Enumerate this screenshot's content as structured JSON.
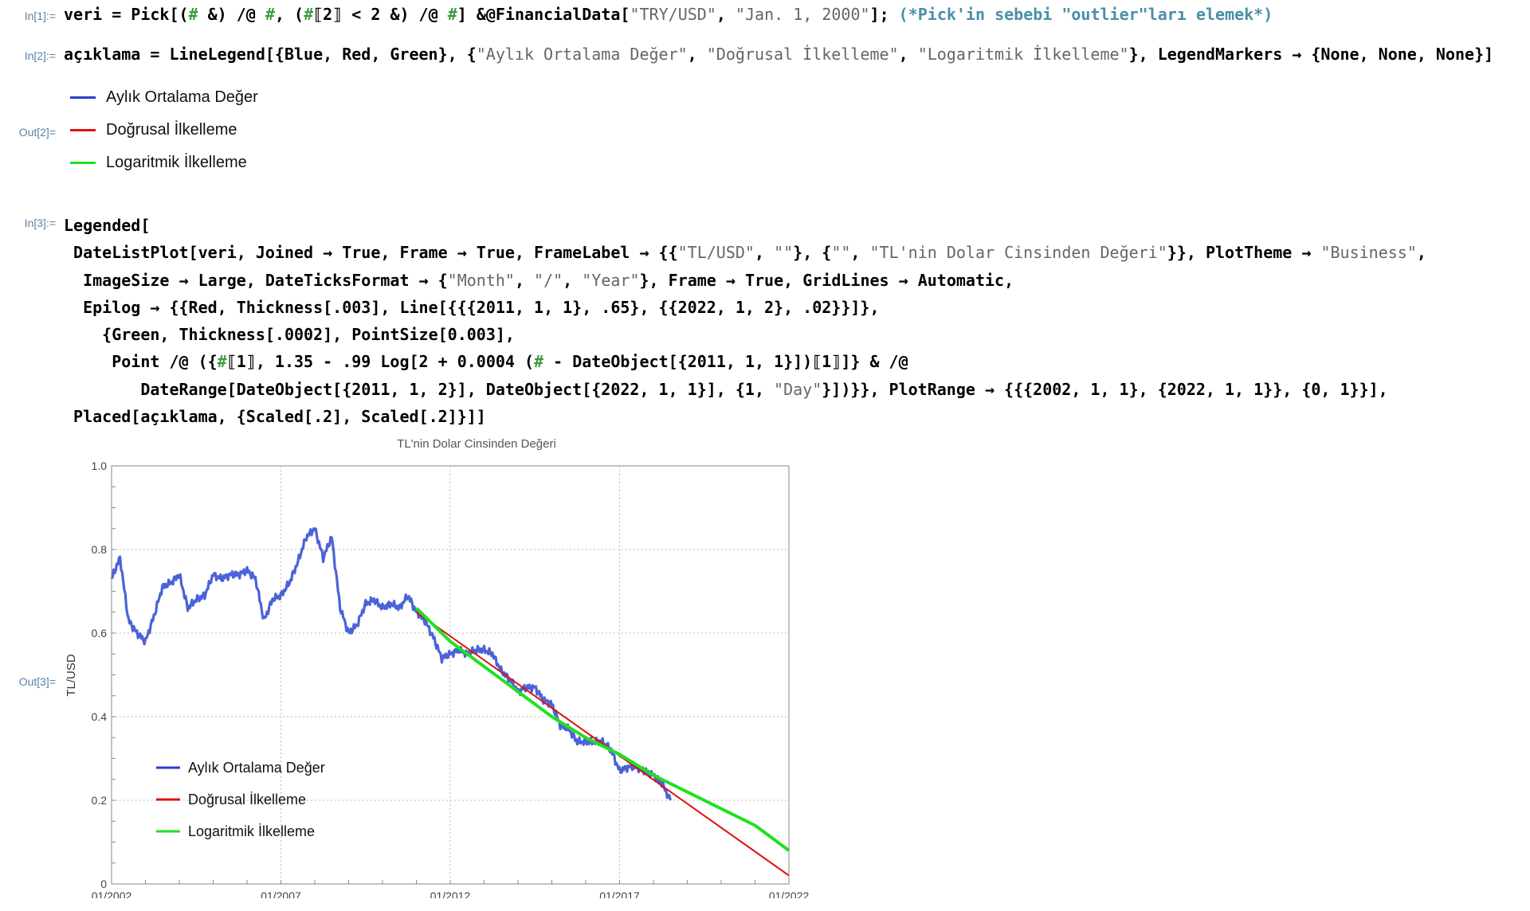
{
  "cells": {
    "in1_label": "In[1]:=",
    "in2_label": "In[2]:=",
    "out2_label": "Out[2]=",
    "in3_label": "In[3]:=",
    "out3_label": "Out[3]="
  },
  "code": {
    "in1": {
      "a": "veri = Pick[(",
      "s1": "#",
      "b": " &) /@ ",
      "s2": "#",
      "c": ", (",
      "s3": "#",
      "d": "⟦2⟧ < 2 &) /@ ",
      "s4": "#",
      "e": "] &@FinancialData[",
      "str1": "\"TRY/USD\"",
      "f": ", ",
      "str2": "\"Jan. 1, 2000\"",
      "g": "]; ",
      "comment": "(*Pick'in sebebi \"outlier\"ları elemek*)"
    },
    "in2": {
      "a": "açıklama = LineLegend[{Blue, Red, Green}, {",
      "str1": "\"Aylık Ortalama Değer\"",
      "b": ", ",
      "str2": "\"Doğrusal İlkelleme\"",
      "c": ", ",
      "str3": "\"Logaritmik İlkelleme\"",
      "d": "}, LegendMarkers → {None, None, None}]"
    },
    "in3": {
      "l1": "Legended[",
      "l2a": "DateListPlot[veri, Joined → True, Frame → True, FrameLabel → {{",
      "l2s1": "\"TL/USD\"",
      "l2b": ", ",
      "l2s2": "\"\"",
      "l2c": "}, {",
      "l2s3": "\"\"",
      "l2d": ", ",
      "l2s4": "\"TL'nin Dolar Cinsinden Değeri\"",
      "l2e": "}}, PlotTheme → ",
      "l2s5": "\"Business\"",
      "l2f": ",",
      "l3a": "ImageSize → Large, DateTicksFormat → {",
      "l3s1": "\"Month\"",
      "l3b": ", ",
      "l3s2": "\"/\"",
      "l3c": ", ",
      "l3s3": "\"Year\"",
      "l3d": "}, Frame → True, GridLines → Automatic,",
      "l4": "Epilog → {{Red, Thickness[.003], Line[{{{2011, 1, 1}, .65}, {{2022, 1, 2}, .02}}]},",
      "l5": "{Green, Thickness[.0002], PointSize[0.003],",
      "l6a": "Point /@ ({",
      "l6s1": "#",
      "l6b": "⟦1⟧, 1.35 - .99 Log[2 + 0.0004 (",
      "l6s2": "#",
      "l6c": " - DateObject[{2011, 1, 1}])⟦1⟧]} & /@",
      "l7a": "DateRange[DateObject[{2011, 1, 2}], DateObject[{2022, 1, 1}], {1, ",
      "l7s1": "\"Day\"",
      "l7b": "}])}}, PlotRange → {{{2002, 1, 1}, {2022, 1, 1}}, {0, 1}}],",
      "l8": "Placed[açıklama, {Scaled[.2], Scaled[.2]}]]"
    }
  },
  "legend": {
    "items": [
      {
        "label": "Aylık Ortalama Değer",
        "color": "#2b3fd0"
      },
      {
        "label": "Doğrusal İlkelleme",
        "color": "#e01010"
      },
      {
        "label": "Logaritmik İlkelleme",
        "color": "#22e022"
      }
    ]
  },
  "chart_data": {
    "type": "line",
    "title": "TL'nin Dolar Cinsinden Değeri",
    "xlabel": "",
    "ylabel": "TL/USD",
    "xlim": [
      "2002-01",
      "2022-01"
    ],
    "ylim": [
      0,
      1
    ],
    "x_ticks": [
      "01/2002",
      "01/2007",
      "01/2012",
      "01/2017",
      "01/2022"
    ],
    "y_ticks": [
      "0",
      "0.2",
      "0.4",
      "0.6",
      "0.8",
      "1.0"
    ],
    "grid": true,
    "legend_position": "bottom-left",
    "series": [
      {
        "name": "Aylık Ortalama Değer",
        "color": "#4a63d8",
        "x": [
          "2002-01",
          "2002-04",
          "2002-07",
          "2002-10",
          "2003-01",
          "2003-04",
          "2003-07",
          "2003-10",
          "2004-01",
          "2004-04",
          "2004-07",
          "2004-10",
          "2005-01",
          "2005-04",
          "2005-07",
          "2005-10",
          "2006-01",
          "2006-04",
          "2006-07",
          "2006-10",
          "2007-01",
          "2007-04",
          "2007-07",
          "2007-10",
          "2008-01",
          "2008-04",
          "2008-07",
          "2008-10",
          "2009-01",
          "2009-04",
          "2009-07",
          "2009-10",
          "2010-01",
          "2010-04",
          "2010-07",
          "2010-10",
          "2011-01",
          "2011-04",
          "2011-07",
          "2011-10",
          "2012-01",
          "2012-04",
          "2012-07",
          "2012-10",
          "2013-01",
          "2013-04",
          "2013-07",
          "2013-10",
          "2014-01",
          "2014-04",
          "2014-07",
          "2014-10",
          "2015-01",
          "2015-04",
          "2015-07",
          "2015-10",
          "2016-01",
          "2016-04",
          "2016-07",
          "2016-10",
          "2017-01",
          "2017-04",
          "2017-07",
          "2017-10",
          "2018-01",
          "2018-04",
          "2018-07"
        ],
        "y": [
          0.73,
          0.78,
          0.63,
          0.6,
          0.58,
          0.64,
          0.71,
          0.72,
          0.74,
          0.66,
          0.68,
          0.69,
          0.74,
          0.73,
          0.74,
          0.74,
          0.75,
          0.73,
          0.63,
          0.68,
          0.69,
          0.72,
          0.77,
          0.83,
          0.85,
          0.78,
          0.83,
          0.66,
          0.6,
          0.62,
          0.67,
          0.68,
          0.66,
          0.67,
          0.66,
          0.69,
          0.65,
          0.63,
          0.59,
          0.54,
          0.55,
          0.56,
          0.55,
          0.56,
          0.56,
          0.55,
          0.51,
          0.49,
          0.46,
          0.47,
          0.47,
          0.44,
          0.43,
          0.38,
          0.37,
          0.34,
          0.34,
          0.34,
          0.34,
          0.32,
          0.27,
          0.28,
          0.28,
          0.27,
          0.26,
          0.24,
          0.2
        ]
      },
      {
        "name": "Doğrusal İlkelleme",
        "color": "#e01010",
        "x": [
          "2011-01-01",
          "2022-01-02"
        ],
        "y": [
          0.65,
          0.02
        ]
      },
      {
        "name": "Logaritmik İlkelleme",
        "color": "#22e022",
        "x": [
          "2011-01",
          "2012-01",
          "2013-01",
          "2014-01",
          "2015-01",
          "2016-01",
          "2017-01",
          "2018-01",
          "2019-01",
          "2020-01",
          "2021-01",
          "2022-01"
        ],
        "y": [
          0.66,
          0.58,
          0.52,
          0.46,
          0.4,
          0.35,
          0.31,
          0.26,
          0.22,
          0.18,
          0.14,
          0.08
        ]
      }
    ]
  }
}
